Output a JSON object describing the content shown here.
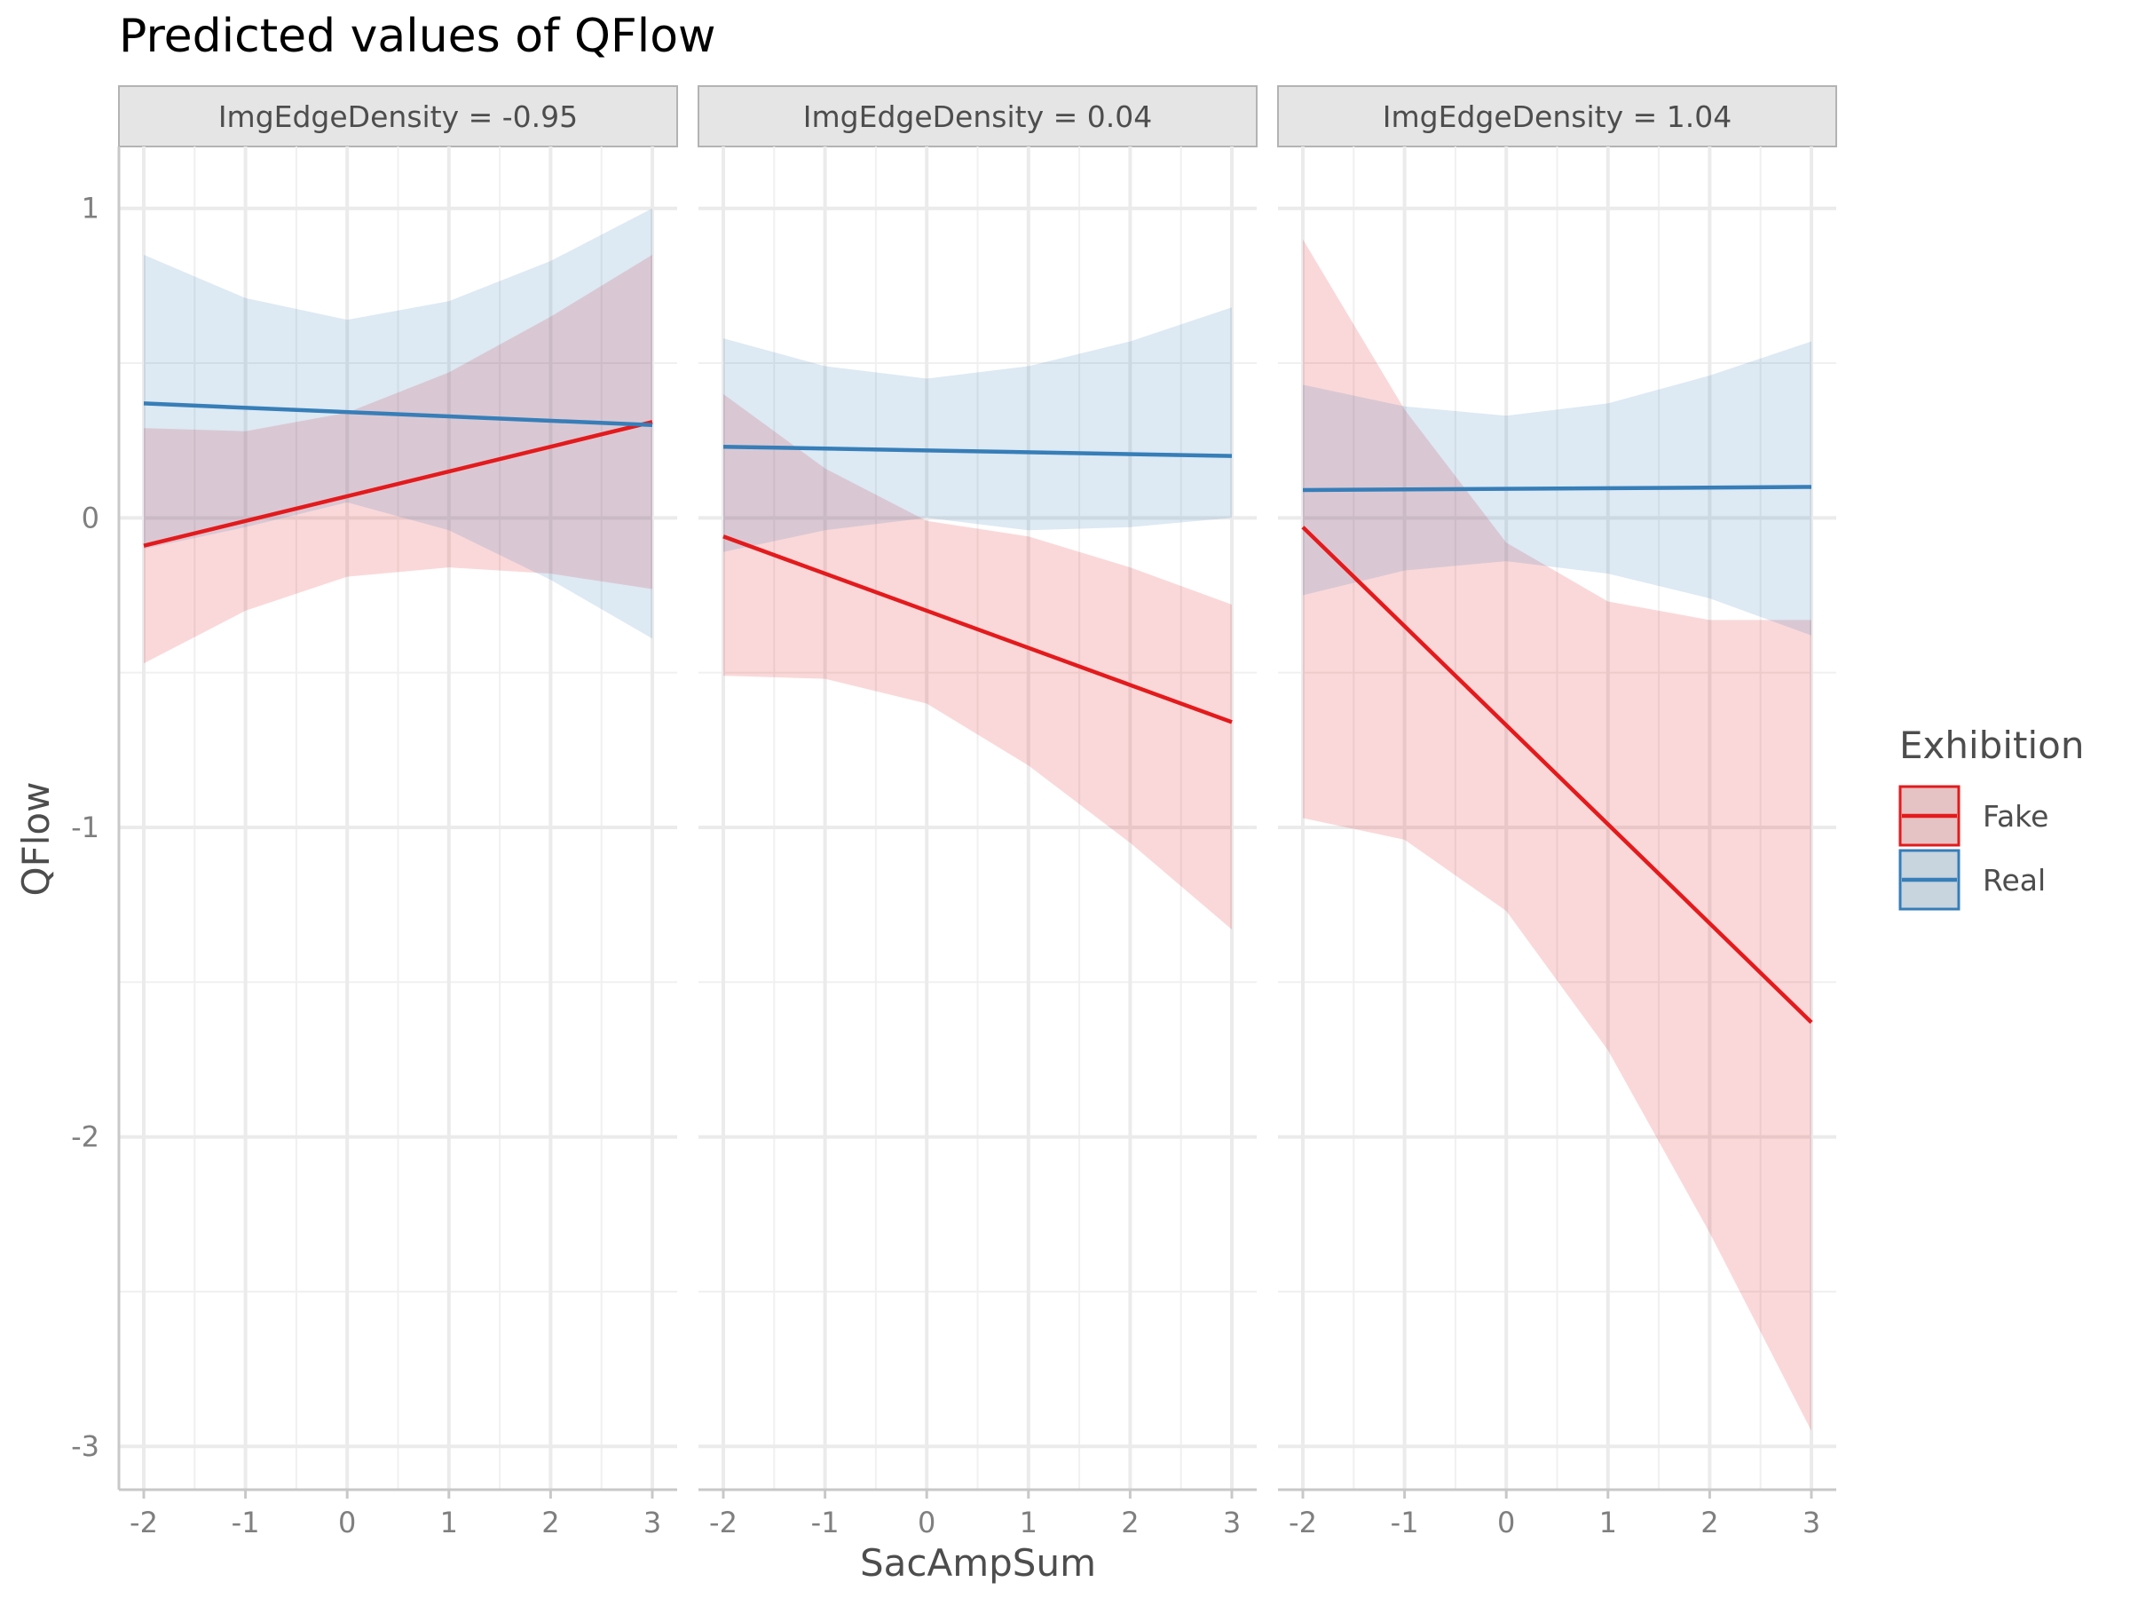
{
  "chart_data": {
    "type": "line",
    "title": "Predicted values of QFlow",
    "xlabel": "SacAmpSum",
    "ylabel": "QFlow",
    "xlim": [
      -2.25,
      3.25
    ],
    "ylim": [
      -3.14,
      1.2
    ],
    "x_ticks": [
      -2,
      -1,
      0,
      1,
      2,
      3
    ],
    "y_ticks": [
      1,
      0,
      -1,
      -2,
      -3
    ],
    "grid": true,
    "legend": {
      "title": "Exhibition",
      "position": "right"
    },
    "colors": {
      "Fake": "#e41a1c",
      "Real": "#377eb8"
    },
    "facets": [
      {
        "label": "ImgEdgeDensity = -0.95",
        "series": [
          {
            "name": "Fake",
            "x": [
              -2,
              3
            ],
            "y": [
              -0.09,
              0.31
            ],
            "ci_x": [
              -2,
              -1,
              0,
              1,
              2,
              3
            ],
            "ci_low": [
              -0.47,
              -0.3,
              -0.19,
              -0.16,
              -0.18,
              -0.23
            ],
            "ci_high": [
              0.29,
              0.28,
              0.34,
              0.47,
              0.65,
              0.85
            ]
          },
          {
            "name": "Real",
            "x": [
              -2,
              3
            ],
            "y": [
              0.37,
              0.3
            ],
            "ci_x": [
              -2,
              -1,
              0,
              1,
              2,
              3
            ],
            "ci_low": [
              -0.1,
              -0.03,
              0.05,
              -0.04,
              -0.2,
              -0.39
            ],
            "ci_high": [
              0.85,
              0.71,
              0.64,
              0.7,
              0.83,
              1.0
            ]
          }
        ]
      },
      {
        "label": "ImgEdgeDensity = 0.04",
        "series": [
          {
            "name": "Fake",
            "x": [
              -2,
              3
            ],
            "y": [
              -0.06,
              -0.66
            ],
            "ci_x": [
              -2,
              -1,
              0,
              1,
              2,
              3
            ],
            "ci_low": [
              -0.51,
              -0.52,
              -0.6,
              -0.8,
              -1.05,
              -1.33
            ],
            "ci_high": [
              0.4,
              0.16,
              -0.01,
              -0.06,
              -0.16,
              -0.28
            ]
          },
          {
            "name": "Real",
            "x": [
              -2,
              3
            ],
            "y": [
              0.23,
              0.2
            ],
            "ci_x": [
              -2,
              -1,
              0,
              1,
              2,
              3
            ],
            "ci_low": [
              -0.11,
              -0.04,
              0.0,
              -0.04,
              -0.03,
              0.0
            ],
            "ci_high": [
              0.58,
              0.49,
              0.45,
              0.49,
              0.57,
              0.68
            ]
          }
        ]
      },
      {
        "label": "ImgEdgeDensity = 1.04",
        "series": [
          {
            "name": "Fake",
            "x": [
              -2,
              3
            ],
            "y": [
              -0.03,
              -1.63
            ],
            "ci_x": [
              -2,
              -1,
              0,
              1,
              2,
              3
            ],
            "ci_low": [
              -0.97,
              -1.04,
              -1.27,
              -1.72,
              -2.31,
              -2.95
            ],
            "ci_high": [
              0.9,
              0.35,
              -0.08,
              -0.27,
              -0.33,
              -0.33
            ]
          },
          {
            "name": "Real",
            "x": [
              -2,
              3
            ],
            "y": [
              0.09,
              0.1
            ],
            "ci_x": [
              -2,
              -1,
              0,
              1,
              2,
              3
            ],
            "ci_low": [
              -0.25,
              -0.17,
              -0.14,
              -0.18,
              -0.26,
              -0.38
            ],
            "ci_high": [
              0.43,
              0.36,
              0.33,
              0.37,
              0.46,
              0.57
            ]
          }
        ]
      }
    ]
  }
}
